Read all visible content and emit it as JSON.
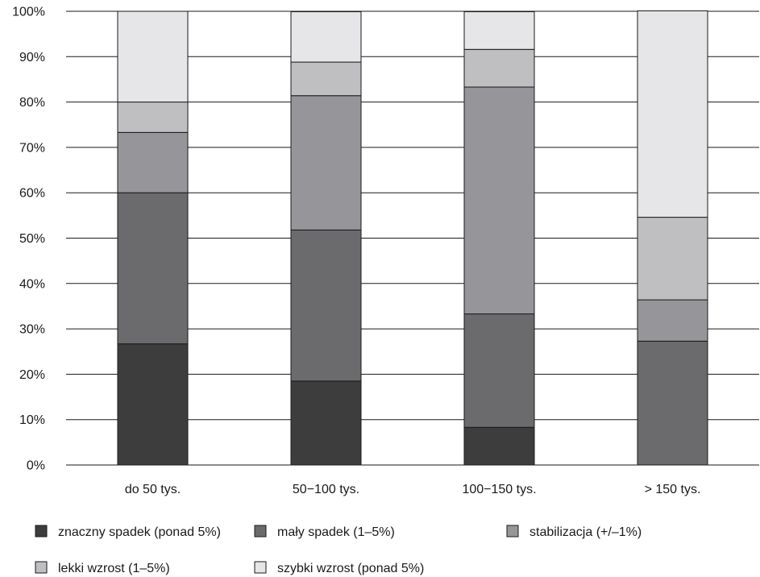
{
  "chart_data": {
    "type": "bar",
    "stacked": true,
    "normalized": true,
    "title": "",
    "xlabel": "",
    "ylabel": "",
    "ylim": [
      0,
      100
    ],
    "ytick_values": [
      0,
      10,
      20,
      30,
      40,
      50,
      60,
      70,
      80,
      90,
      100
    ],
    "yticks": [
      "0%",
      "10%",
      "20%",
      "30%",
      "40%",
      "50%",
      "60%",
      "70%",
      "80%",
      "90%",
      "100%"
    ],
    "grid": "horizontal",
    "legend_position": "bottom",
    "categories": [
      "do 50 tys.",
      "50−100 tys.",
      "100−150 tys.",
      "> 150 tys."
    ],
    "series": [
      {
        "name": "znaczny spadek (ponad 5%)",
        "color": "#3d3d3d",
        "values": [
          26.7,
          18.5,
          8.3,
          0
        ]
      },
      {
        "name": "mały spadek (1–5%)",
        "color": "#6b6b6e",
        "values": [
          33.3,
          33.3,
          25.0,
          27.3
        ]
      },
      {
        "name": "stabilizacja (+/–1%)",
        "color": "#96969a",
        "values": [
          13.3,
          29.6,
          50.0,
          9.1
        ]
      },
      {
        "name": "lekki wzrost (1–5%)",
        "color": "#bfbfc2",
        "values": [
          6.7,
          7.4,
          8.3,
          18.2
        ]
      },
      {
        "name": "szybki wzrost (ponad 5%)",
        "color": "#e6e6e8",
        "values": [
          20.0,
          11.1,
          8.3,
          45.5
        ]
      }
    ]
  }
}
